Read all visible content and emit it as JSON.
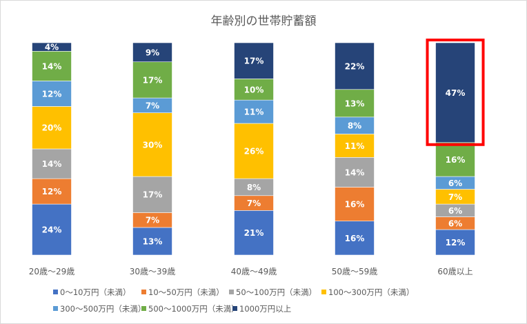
{
  "chart_data": {
    "type": "bar",
    "stacked": true,
    "title": "年齢別の世帯貯蓄額",
    "categories": [
      "20歳～29歳",
      "30歳～39歳",
      "40歳～49歳",
      "50歳～59歳",
      "60歳以上"
    ],
    "ylim": [
      0,
      100
    ],
    "unit": "%",
    "legend_position": "bottom",
    "series": [
      {
        "name": "0～10万円（未満）",
        "color": "#4472C4",
        "values": [
          24,
          13,
          21,
          16,
          12
        ]
      },
      {
        "name": "10～50万円（未満）",
        "color": "#ED7D31",
        "values": [
          12,
          7,
          7,
          16,
          6
        ]
      },
      {
        "name": "50～100万円（未満）",
        "color": "#A5A5A5",
        "values": [
          14,
          17,
          8,
          14,
          6
        ]
      },
      {
        "name": "100～300万円（未満）",
        "color": "#FFC000",
        "values": [
          20,
          30,
          26,
          11,
          7
        ]
      },
      {
        "name": "300～500万円（未満）",
        "color": "#5B9BD5",
        "values": [
          12,
          7,
          11,
          8,
          6
        ]
      },
      {
        "name": "500～1000万円（未満）",
        "color": "#70AD47",
        "values": [
          14,
          17,
          10,
          13,
          16
        ]
      },
      {
        "name": "1000万円以上",
        "color": "#264478",
        "values": [
          4,
          9,
          17,
          22,
          47
        ]
      }
    ],
    "highlight": {
      "category_index": 4,
      "series_index": 6,
      "color": "#FF0000"
    }
  }
}
